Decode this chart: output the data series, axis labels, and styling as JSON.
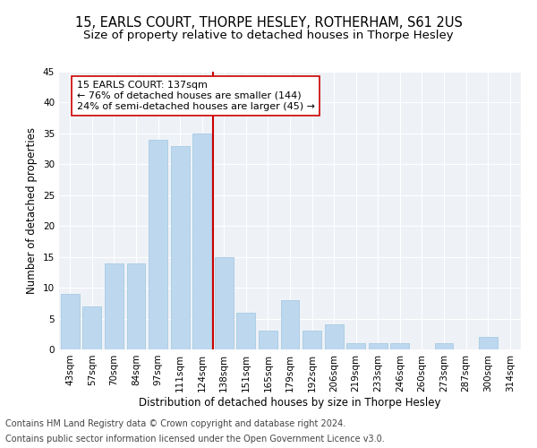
{
  "title": "15, EARLS COURT, THORPE HESLEY, ROTHERHAM, S61 2US",
  "subtitle": "Size of property relative to detached houses in Thorpe Hesley",
  "xlabel": "Distribution of detached houses by size in Thorpe Hesley",
  "ylabel": "Number of detached properties",
  "footnote1": "Contains HM Land Registry data © Crown copyright and database right 2024.",
  "footnote2": "Contains public sector information licensed under the Open Government Licence v3.0.",
  "categories": [
    "43sqm",
    "57sqm",
    "70sqm",
    "84sqm",
    "97sqm",
    "111sqm",
    "124sqm",
    "138sqm",
    "151sqm",
    "165sqm",
    "179sqm",
    "192sqm",
    "206sqm",
    "219sqm",
    "233sqm",
    "246sqm",
    "260sqm",
    "273sqm",
    "287sqm",
    "300sqm",
    "314sqm"
  ],
  "values": [
    9,
    7,
    14,
    14,
    34,
    33,
    35,
    15,
    6,
    3,
    8,
    3,
    4,
    1,
    1,
    1,
    0,
    1,
    0,
    2,
    0
  ],
  "bar_color": "#bdd7ee",
  "bar_edge_color": "#9ec6e0",
  "vline_color": "#cc0000",
  "annotation_text": "15 EARLS COURT: 137sqm\n← 76% of detached houses are smaller (144)\n24% of semi-detached houses are larger (45) →",
  "annotation_box_color": "white",
  "annotation_box_edge": "#cc0000",
  "ylim": [
    0,
    45
  ],
  "yticks": [
    0,
    5,
    10,
    15,
    20,
    25,
    30,
    35,
    40,
    45
  ],
  "bg_color": "#eef2f7",
  "grid_color": "white",
  "title_fontsize": 10.5,
  "subtitle_fontsize": 9.5,
  "axis_label_fontsize": 8.5,
  "tick_fontsize": 7.5,
  "annotation_fontsize": 8,
  "footnote_fontsize": 7
}
